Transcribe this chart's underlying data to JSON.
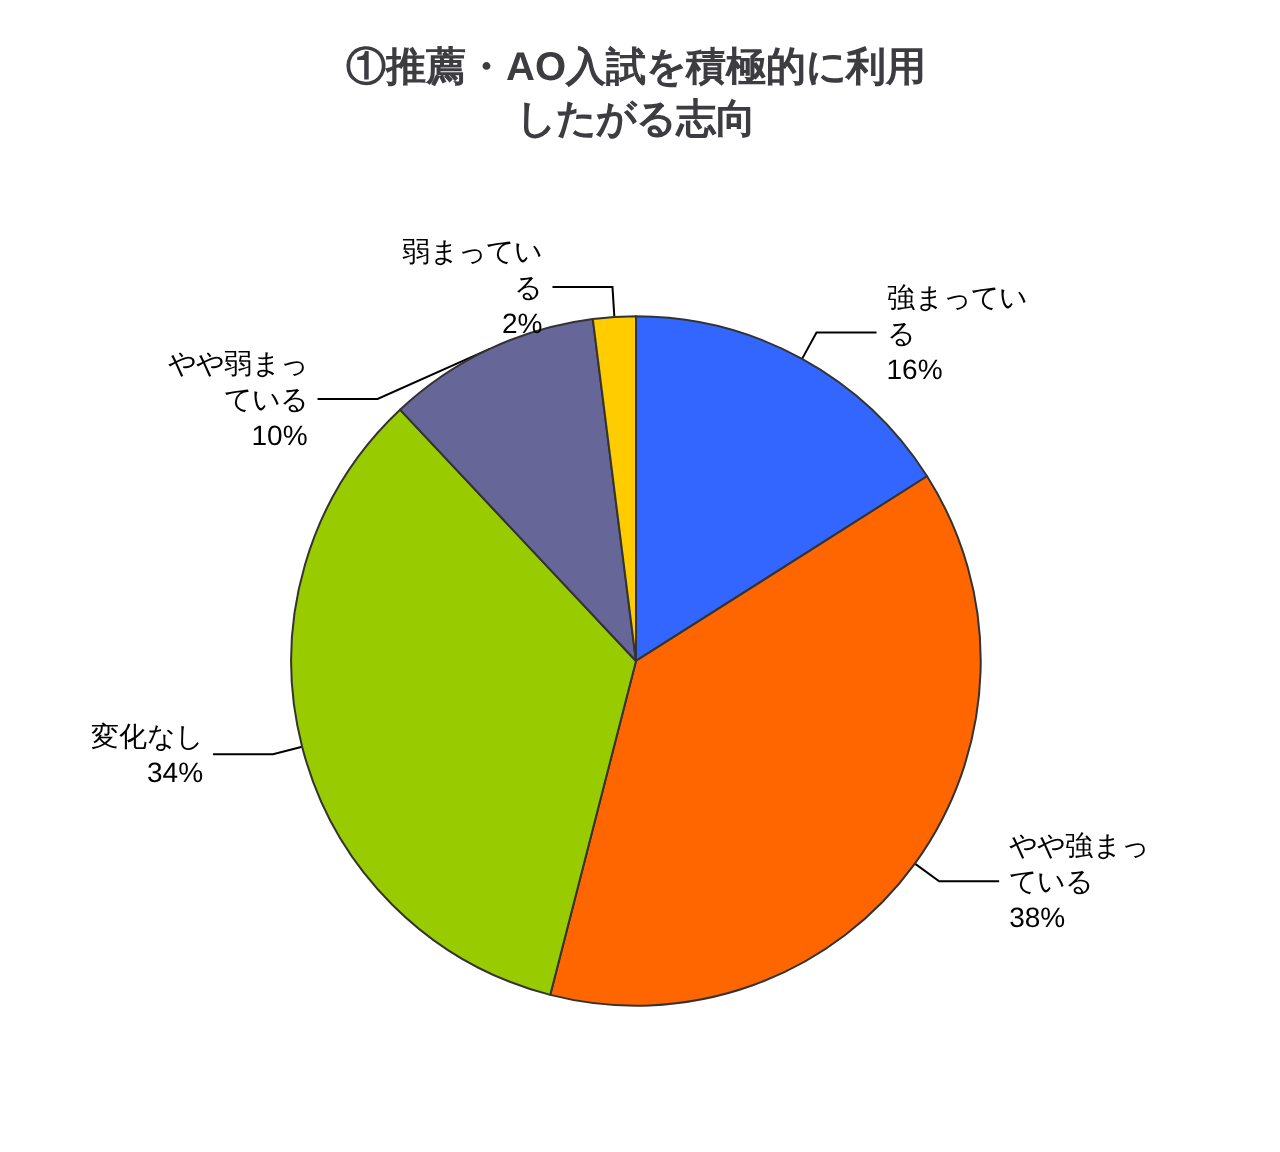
{
  "chart_data": {
    "type": "pie",
    "title": "①推薦・AO入試を積極的に利用したがる志向",
    "categories": [
      "強まっている",
      "やや強まっている",
      "変化なし",
      "やや弱まっている",
      "弱まっている"
    ],
    "values": [
      16,
      38,
      34,
      10,
      2
    ],
    "colors": [
      "#3366ff",
      "#ff6600",
      "#99cc00",
      "#666699",
      "#ffcc00"
    ],
    "value_labels": [
      "16%",
      "38%",
      "34%",
      "10%",
      "2%"
    ],
    "legend": false
  }
}
